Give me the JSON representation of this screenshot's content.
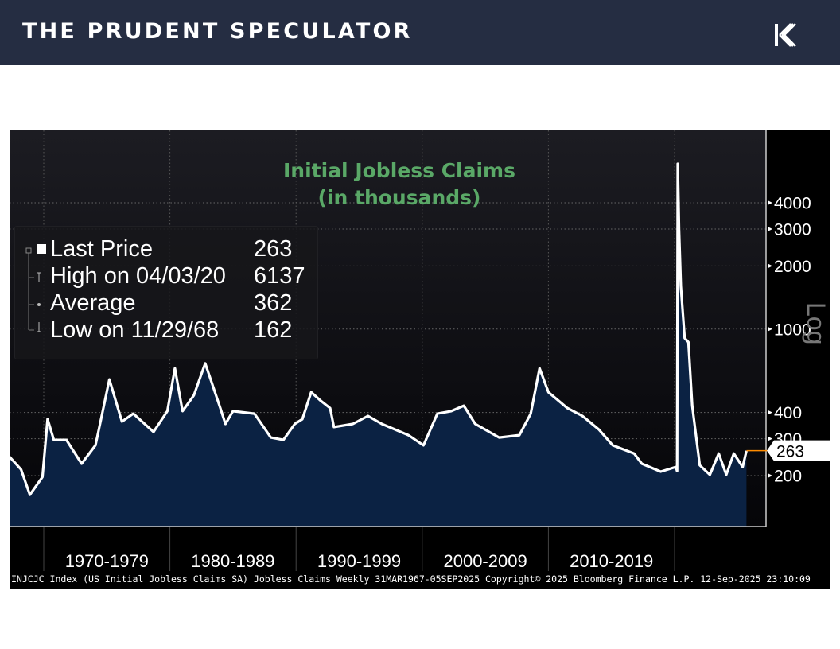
{
  "header": {
    "brand": "THE PRUDENT SPECULATOR",
    "logo_icon": "k-logo-icon",
    "bg_color": "#252d42"
  },
  "chart_data": {
    "type": "area",
    "title": "Initial Jobless Claims",
    "subtitle": "(in thousands)",
    "scale": "log",
    "scale_label": "Log",
    "ylim": [
      114,
      8760
    ],
    "xlim": [
      1967.2,
      2025.7
    ],
    "y_ticks": [
      4000,
      3000,
      2000,
      1000,
      400,
      300,
      200
    ],
    "x_bands": [
      "1970-1979",
      "1980-1989",
      "1990-1999",
      "2000-2009",
      "2010-2019"
    ],
    "x_band_starts": [
      1970,
      1980,
      1990,
      2000,
      2010,
      2020
    ],
    "grid": true,
    "legend_placement": "top-left",
    "legend": [
      {
        "label": "Last Price",
        "value": "263"
      },
      {
        "label": "High on 04/03/20",
        "value": "6137"
      },
      {
        "label": "Average",
        "value": "362"
      },
      {
        "label": "Low on 11/29/68",
        "value": "162"
      }
    ],
    "last_value": 263,
    "last_value_label": "263",
    "colors": {
      "line": "#ffffff",
      "fill": "#0b2243",
      "title": "#5aa867",
      "last_marker": "#ff8c00"
    },
    "series": [
      {
        "x": [
          1967.2,
          1968.2,
          1968.9,
          1969.9,
          1970.3,
          1970.8,
          1971.8,
          1973.0,
          1974.1,
          1974.5,
          1975.2,
          1976.2,
          1977.1,
          1978.7,
          1979.8,
          1980.4,
          1981.0,
          1981.9,
          1982.8,
          1984.0,
          1984.4,
          1985.0,
          1986.7,
          1988.0,
          1989.0,
          1989.9,
          1990.5,
          1991.2,
          1991.9,
          1992.7,
          1993.0,
          1994.5,
          1995.7,
          1996.8,
          1998.9,
          2000.1,
          2001.2,
          2002.3,
          2003.3,
          2004.2,
          2006.1,
          2007.7,
          2008.6,
          2009.3,
          2010.0,
          2011.5,
          2012.7,
          2014.0,
          2015.1,
          2016.8,
          2017.4,
          2018.9,
          2020.1,
          2020.2,
          2020.25,
          2020.35,
          2020.5,
          2020.8,
          2021.1,
          2021.4,
          2021.8,
          2022.0,
          2022.8,
          2023.5,
          2024.1,
          2024.7,
          2025.4,
          2025.7
        ],
        "y": [
          249,
          214,
          162,
          197,
          372,
          296,
          296,
          228,
          279,
          362,
          575,
          362,
          395,
          323,
          406,
          650,
          406,
          483,
          686,
          420,
          353,
          406,
          395,
          304,
          296,
          353,
          372,
          500,
          458,
          420,
          341,
          353,
          385,
          353,
          312,
          279,
          395,
          406,
          431,
          353,
          304,
          312,
          395,
          650,
          500,
          420,
          385,
          332,
          279,
          255,
          228,
          209,
          220,
          210,
          6137,
          3000,
          1600,
          906,
          867,
          431,
          279,
          224,
          202,
          255,
          202,
          255,
          220,
          263
        ]
      }
    ]
  },
  "footer": "INJCJC Index (US Initial Jobless Claims SA) Jobless Claims  Weekly 31MAR1967-05SEP2025  Copyright© 2025 Bloomberg Finance L.P.  12-Sep-2025 23:10:09"
}
